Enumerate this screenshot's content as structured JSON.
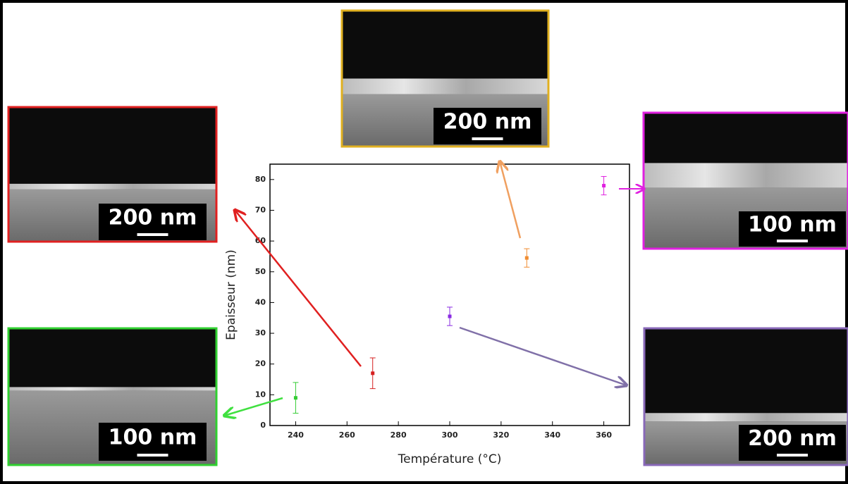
{
  "chart_data": {
    "type": "scatter",
    "x_label": "Température (°C)",
    "y_label": "Epaisseur (nm)",
    "x": [
      240,
      270,
      300,
      330,
      360
    ],
    "values": [
      9,
      17,
      35.5,
      54.5,
      78
    ],
    "errors": [
      5,
      5,
      3,
      3,
      3
    ],
    "colors": [
      "#33cc33",
      "#d62020",
      "#8a2be2",
      "#f08c30",
      "#e020e0"
    ],
    "xlim": [
      230,
      370
    ],
    "xticks": [
      240,
      260,
      280,
      300,
      320,
      340,
      360
    ],
    "ylim": [
      0,
      85
    ],
    "yticks": [
      0,
      10,
      20,
      30,
      40,
      50,
      60,
      70,
      80
    ]
  },
  "images": [
    {
      "scale": "200 nm"
    },
    {
      "scale": "200 nm"
    },
    {
      "scale": "100 nm"
    },
    {
      "scale": "100 nm"
    },
    {
      "scale": "200 nm"
    }
  ]
}
